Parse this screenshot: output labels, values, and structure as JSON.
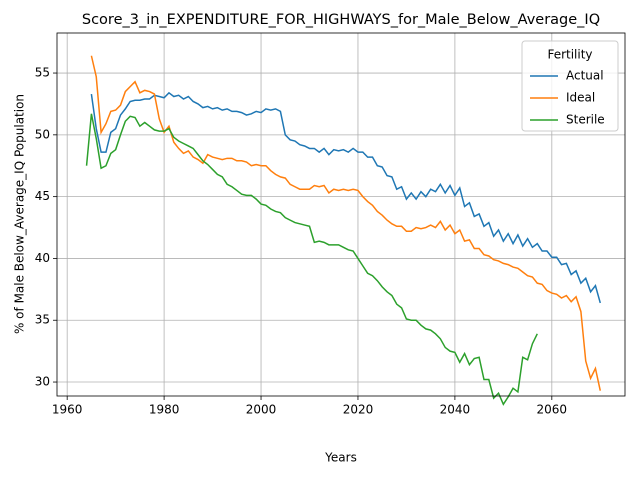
{
  "chart_data": {
    "type": "line",
    "title": "Score_3_in_EXPENDITURE_FOR_HIGHWAYS_for_Male_Below_Average_IQ",
    "x_label": "Years",
    "y_label": "% of Male Below_Average_IQ Population",
    "legend_title": "Fertility",
    "legend_position": "upper right",
    "grid": true,
    "xlim": [
      1957.9,
      2075.1
    ],
    "ylim": [
      28.87,
      58.24
    ],
    "xticks": [
      1960,
      1980,
      2000,
      2020,
      2040,
      2060
    ],
    "yticks": [
      30,
      35,
      40,
      45,
      50,
      55
    ],
    "x": [
      1964,
      1965,
      1966,
      1967,
      1968,
      1969,
      1970,
      1971,
      1972,
      1973,
      1974,
      1975,
      1976,
      1977,
      1978,
      1979,
      1980,
      1981,
      1982,
      1983,
      1984,
      1985,
      1986,
      1987,
      1988,
      1989,
      1990,
      1991,
      1992,
      1993,
      1994,
      1995,
      1996,
      1997,
      1998,
      1999,
      2000,
      2001,
      2002,
      2003,
      2004,
      2005,
      2006,
      2007,
      2008,
      2009,
      2010,
      2011,
      2012,
      2013,
      2014,
      2015,
      2016,
      2017,
      2018,
      2019,
      2020,
      2021,
      2022,
      2023,
      2024,
      2025,
      2026,
      2027,
      2028,
      2029,
      2030,
      2031,
      2032,
      2033,
      2034,
      2035,
      2036,
      2037,
      2038,
      2039,
      2040,
      2041,
      2042,
      2043,
      2044,
      2045,
      2046,
      2047,
      2048,
      2049,
      2050,
      2051,
      2052,
      2053,
      2054,
      2055,
      2056,
      2057,
      2058,
      2059,
      2060,
      2061,
      2062,
      2063,
      2064,
      2065,
      2066,
      2067,
      2068,
      2069,
      2070
    ],
    "series": [
      {
        "name": "Actual",
        "color": "#1f77b4",
        "values": [
          null,
          53.3,
          50.5,
          48.6,
          48.6,
          50.2,
          50.5,
          51.6,
          52.1,
          52.7,
          52.8,
          52.8,
          52.9,
          52.9,
          53.2,
          53.1,
          53.0,
          53.4,
          53.1,
          53.2,
          52.9,
          53.1,
          52.7,
          52.5,
          52.2,
          52.3,
          52.1,
          52.2,
          52.0,
          52.1,
          51.9,
          51.9,
          51.8,
          51.6,
          51.7,
          51.9,
          51.8,
          52.1,
          52.0,
          52.1,
          51.9,
          50.0,
          49.6,
          49.5,
          49.2,
          49.1,
          48.9,
          48.9,
          48.6,
          48.9,
          48.4,
          48.8,
          48.7,
          48.8,
          48.6,
          48.9,
          48.6,
          48.6,
          48.2,
          48.2,
          47.5,
          47.4,
          46.7,
          46.6,
          45.6,
          45.8,
          44.8,
          45.3,
          44.8,
          45.4,
          45.0,
          45.6,
          45.4,
          46.0,
          45.3,
          45.9,
          45.1,
          45.7,
          44.2,
          44.5,
          43.4,
          43.6,
          42.6,
          42.9,
          41.8,
          42.3,
          41.4,
          42.0,
          41.2,
          41.9,
          41.0,
          41.6,
          40.9,
          41.2,
          40.6,
          40.6,
          40.1,
          40.1,
          39.5,
          39.6,
          38.7,
          39.0,
          38.0,
          38.4,
          37.3,
          37.8,
          36.4
        ]
      },
      {
        "name": "Ideal",
        "color": "#ff7f0e",
        "values": [
          null,
          56.4,
          54.7,
          50.2,
          50.9,
          51.9,
          52.0,
          52.4,
          53.5,
          53.9,
          54.3,
          53.4,
          53.6,
          53.5,
          53.3,
          51.3,
          50.2,
          50.7,
          49.4,
          48.9,
          48.5,
          48.7,
          48.2,
          48.0,
          47.7,
          48.4,
          48.2,
          48.1,
          48.0,
          48.1,
          48.1,
          47.9,
          47.9,
          47.8,
          47.5,
          47.6,
          47.5,
          47.5,
          47.1,
          46.8,
          46.6,
          46.5,
          46.0,
          45.8,
          45.6,
          45.6,
          45.6,
          45.9,
          45.8,
          45.9,
          45.3,
          45.6,
          45.5,
          45.6,
          45.5,
          45.6,
          45.5,
          45.0,
          44.6,
          44.3,
          43.8,
          43.5,
          43.1,
          42.8,
          42.6,
          42.6,
          42.2,
          42.2,
          42.5,
          42.4,
          42.5,
          42.7,
          42.5,
          43.0,
          42.3,
          42.7,
          42.0,
          42.3,
          41.4,
          41.5,
          40.8,
          40.8,
          40.3,
          40.2,
          39.9,
          39.8,
          39.6,
          39.5,
          39.3,
          39.2,
          38.9,
          38.6,
          38.5,
          38.0,
          37.9,
          37.4,
          37.2,
          37.1,
          36.8,
          37.0,
          36.5,
          36.9,
          35.7,
          31.7,
          30.3,
          31.1,
          29.3
        ]
      },
      {
        "name": "Sterile",
        "color": "#2ca02c",
        "values": [
          47.5,
          51.7,
          49.7,
          47.3,
          47.5,
          48.5,
          48.8,
          50.0,
          51.1,
          51.5,
          51.4,
          50.7,
          51.0,
          50.7,
          50.4,
          50.3,
          50.3,
          50.5,
          49.8,
          49.5,
          49.3,
          49.1,
          48.9,
          48.4,
          47.9,
          47.6,
          47.2,
          46.8,
          46.6,
          46.0,
          45.8,
          45.5,
          45.2,
          45.1,
          45.1,
          44.8,
          44.4,
          44.3,
          44.0,
          43.8,
          43.7,
          43.3,
          43.1,
          42.9,
          42.8,
          42.7,
          42.6,
          41.3,
          41.4,
          41.3,
          41.1,
          41.1,
          41.1,
          40.9,
          40.7,
          40.6,
          40.0,
          39.4,
          38.8,
          38.6,
          38.2,
          37.7,
          37.3,
          37.0,
          36.3,
          36.0,
          35.1,
          35.0,
          35.0,
          34.6,
          34.3,
          34.2,
          33.9,
          33.5,
          32.8,
          32.5,
          32.4,
          31.6,
          32.3,
          31.4,
          31.9,
          32.0,
          30.2,
          30.2,
          28.7,
          29.1,
          28.2,
          28.8,
          29.5,
          29.2,
          32.0,
          31.8,
          33.1,
          33.9,
          null,
          null,
          null,
          null,
          null,
          null,
          null,
          null,
          null,
          null,
          null,
          null,
          null
        ]
      }
    ]
  }
}
